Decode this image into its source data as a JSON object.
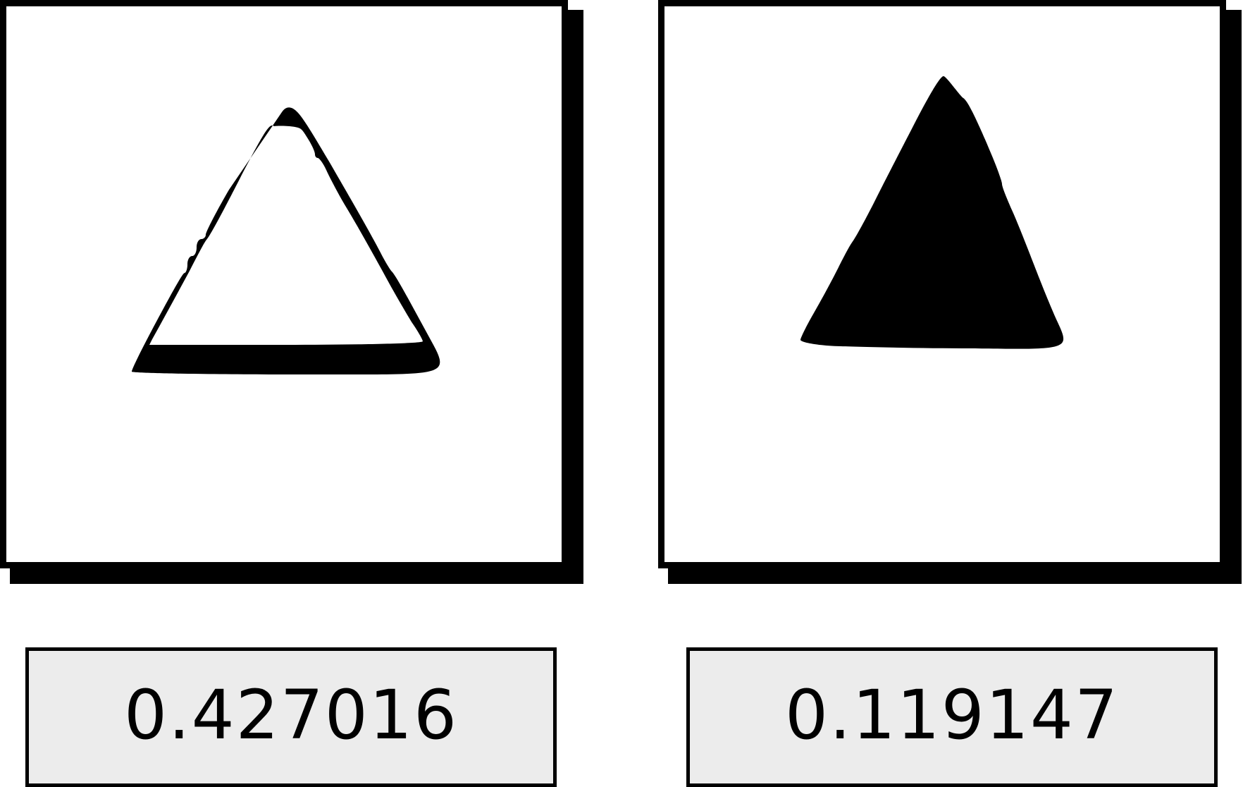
{
  "panels": [
    {
      "shape_icon": "outlined-triangle-icon",
      "value": "0.427016"
    },
    {
      "shape_icon": "filled-triangle-icon",
      "value": "0.119147"
    }
  ],
  "colors": {
    "stroke": "#000000",
    "card_background": "#ffffff",
    "value_background": "#ececec"
  }
}
